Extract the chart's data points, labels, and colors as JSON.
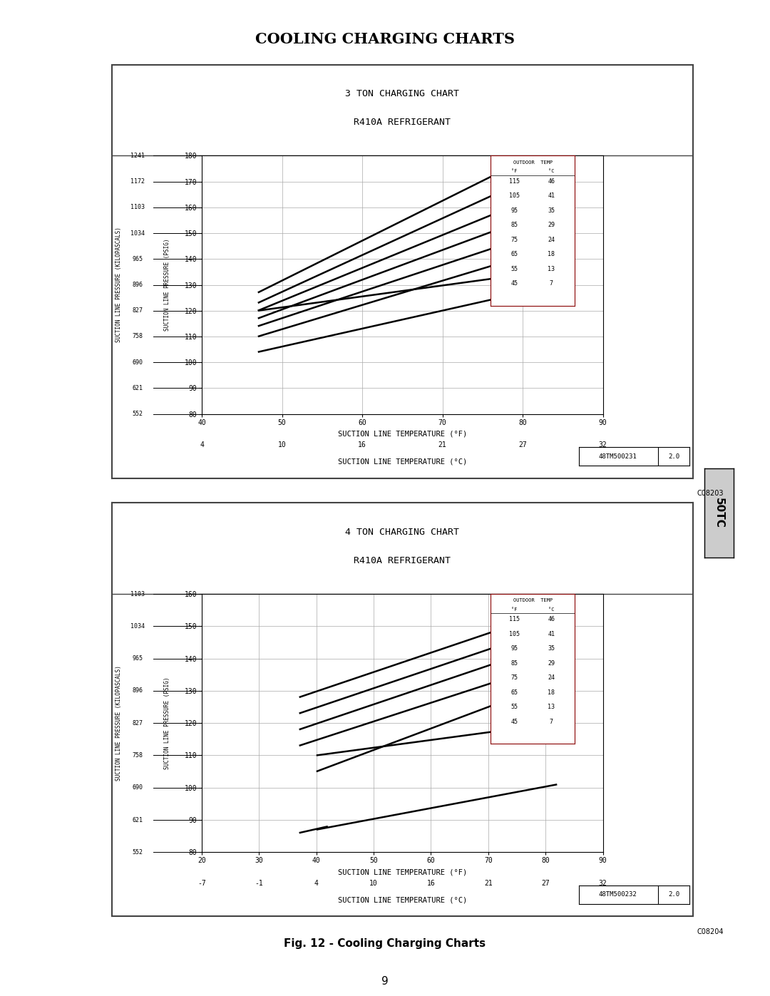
{
  "page_title": "COOLING CHARGING CHARTS",
  "fig_caption": "Fig. 12 - Cooling Charging Charts",
  "page_number": "9",
  "tab_label": "50TC",
  "chart1": {
    "title_line1": "3 TON CHARGING CHART",
    "title_line2": "R410A REFRIGERANT",
    "xlim": [
      40,
      90
    ],
    "ylim": [
      80,
      180
    ],
    "xticks_f": [
      40,
      50,
      60,
      70,
      80,
      90
    ],
    "yticks": [
      80,
      90,
      100,
      110,
      120,
      130,
      140,
      150,
      160,
      170,
      180
    ],
    "xlabel_f": "SUCTION LINE TEMPERATURE (°F)",
    "xlabel_c": "SUCTION LINE TEMPERATURE (°C)",
    "xticks_c": [
      4,
      10,
      16,
      21,
      27,
      32
    ],
    "ylabel_psig": "SUCTION LINE PRESSURE (PSIG)",
    "ylabel_kpa": "SUCTION LINE PRESSURE (KILOPASCALS)",
    "kpa_ticks": [
      552,
      621,
      690,
      758,
      827,
      896,
      965,
      1034,
      1103,
      1172,
      1241
    ],
    "part_number": "48TM500231",
    "version": "2.0",
    "outdoor_temps_f": [
      115,
      105,
      95,
      85,
      75,
      65,
      55,
      45
    ],
    "outdoor_temps_c": [
      46,
      41,
      35,
      29,
      24,
      18,
      13,
      7
    ],
    "lines": [
      {
        "x": [
          47,
          80
        ],
        "y": [
          127,
          178
        ]
      },
      {
        "x": [
          47,
          80
        ],
        "y": [
          123,
          170
        ]
      },
      {
        "x": [
          47,
          80
        ],
        "y": [
          120,
          162
        ]
      },
      {
        "x": [
          47,
          80
        ],
        "y": [
          117,
          155
        ]
      },
      {
        "x": [
          47,
          80
        ],
        "y": [
          114,
          148
        ]
      },
      {
        "x": [
          47,
          80
        ],
        "y": [
          110,
          141
        ]
      },
      {
        "x": [
          47,
          80
        ],
        "y": [
          120,
          134
        ]
      },
      {
        "x": [
          47,
          80
        ],
        "y": [
          104,
          127
        ]
      }
    ]
  },
  "chart2": {
    "title_line1": "4 TON CHARGING CHART",
    "title_line2": "R410A REFRIGERANT",
    "xlim": [
      20,
      90
    ],
    "ylim": [
      80,
      160
    ],
    "xticks_f": [
      20,
      30,
      40,
      50,
      60,
      70,
      80,
      90
    ],
    "yticks": [
      80,
      90,
      100,
      110,
      120,
      130,
      140,
      150,
      160
    ],
    "xlabel_f": "SUCTION LINE TEMPERATURE (°F)",
    "xlabel_c": "SUCTION LINE TEMPERATURE (°C)",
    "xticks_c": [
      -7,
      -1,
      4,
      10,
      16,
      21,
      27,
      32
    ],
    "ylabel_psig": "SUCTION LINE PRESSURE (PSIG)",
    "ylabel_kpa": "SUCTION LINE PRESSURE (KILOPASCALS)",
    "kpa_ticks": [
      552,
      621,
      690,
      758,
      827,
      896,
      965,
      1034,
      1103
    ],
    "part_number": "48TM500232",
    "version": "2.0",
    "outdoor_temps_f": [
      115,
      105,
      95,
      85,
      75,
      65,
      55,
      45
    ],
    "outdoor_temps_c": [
      46,
      41,
      35,
      29,
      24,
      18,
      13,
      7
    ],
    "lines": [
      {
        "x": [
          37,
          82
        ],
        "y": [
          128,
          155
        ]
      },
      {
        "x": [
          37,
          82
        ],
        "y": [
          123,
          150
        ]
      },
      {
        "x": [
          37,
          82
        ],
        "y": [
          118,
          145
        ]
      },
      {
        "x": [
          37,
          82
        ],
        "y": [
          113,
          139
        ]
      },
      {
        "x": [
          40,
          82
        ],
        "y": [
          110,
          120
        ]
      },
      {
        "x": [
          40,
          82
        ],
        "y": [
          105,
          133
        ]
      },
      {
        "x": [
          40,
          82
        ],
        "y": [
          87,
          101
        ]
      },
      {
        "x": [
          37,
          42
        ],
        "y": [
          86,
          88
        ]
      }
    ]
  },
  "bg_color": "#ffffff",
  "panel_bg": "#ffffff",
  "line_color": "#000000",
  "grid_color": "#aaaaaa",
  "text_color": "#000000",
  "border_color": "#555555"
}
